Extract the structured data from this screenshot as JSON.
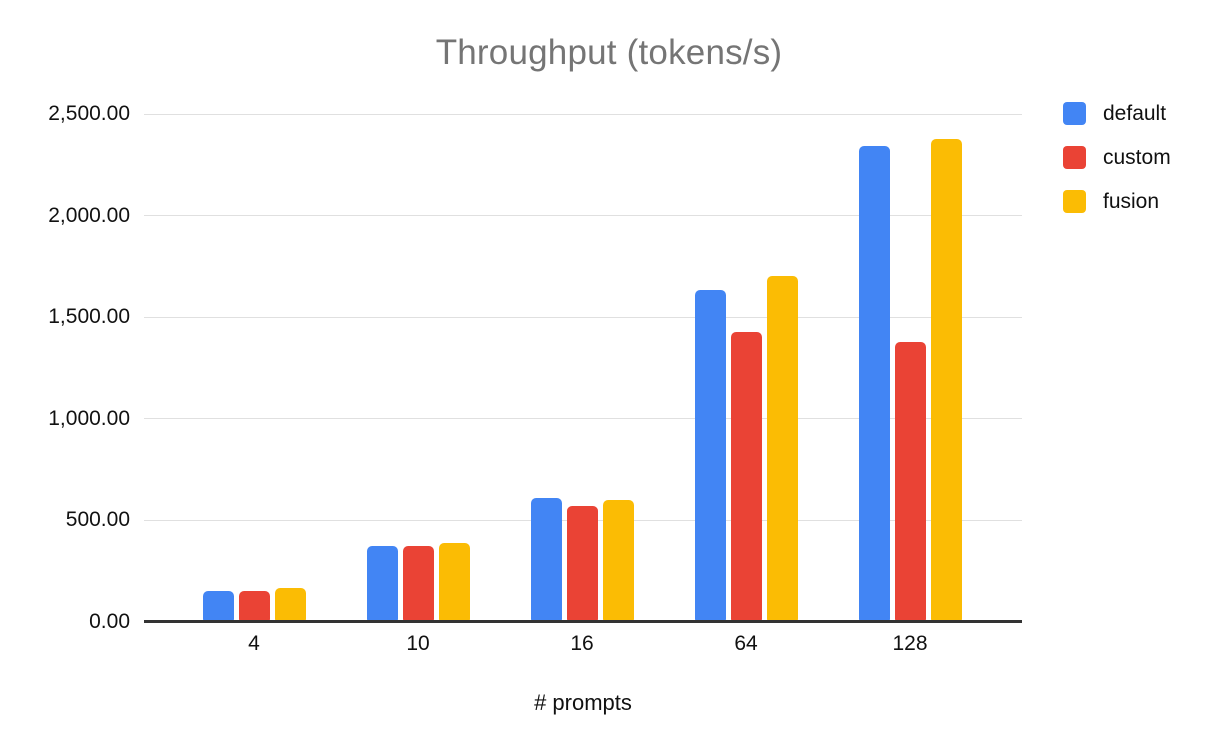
{
  "chart_data": {
    "type": "bar",
    "title": "Throughput (tokens/s)",
    "xlabel": "# prompts",
    "ylabel": "",
    "categories": [
      "4",
      "10",
      "16",
      "64",
      "128"
    ],
    "series": [
      {
        "name": "default",
        "color": "#4285F4",
        "values": [
          155,
          375,
          610,
          1632,
          2345
        ]
      },
      {
        "name": "custom",
        "color": "#EA4335",
        "values": [
          155,
          375,
          570,
          1428,
          1378
        ]
      },
      {
        "name": "fusion",
        "color": "#FBBC04",
        "values": [
          168,
          387,
          600,
          1702,
          2375
        ]
      }
    ],
    "ylim": [
      0,
      2500
    ],
    "yticks": [
      0,
      500,
      1000,
      1500,
      2000,
      2500
    ],
    "ytick_labels": [
      "0.00",
      "500.00",
      "1,000.00",
      "1,500.00",
      "2,000.00",
      "2,500.00"
    ],
    "grid": true,
    "legend_position": "top-right"
  },
  "colors": {
    "title_text": "#757575",
    "axis_text": "#111111",
    "gridline": "#e0e0e0",
    "axis_line": "#333333",
    "background": "#ffffff"
  }
}
